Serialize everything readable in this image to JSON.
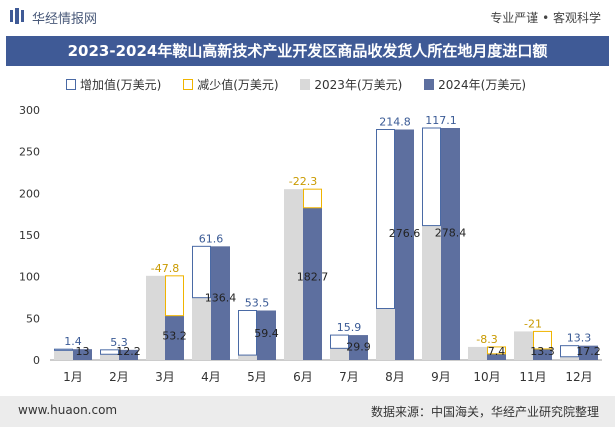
{
  "header": {
    "brand": "华经情报网",
    "slogan": "专业严谨 • 客观科学"
  },
  "footer": {
    "site": "www.huaon.com",
    "source": "数据来源：中国海关，华经产业研究院整理"
  },
  "colors": {
    "title_bg": "#3f5a96",
    "increase": "#4a6aa5",
    "decrease": "#f0b400",
    "y2023": "#d9d9d9",
    "y2024": "#5d6f9f"
  },
  "chart_data": {
    "type": "bar",
    "title": "2023-2024年鞍山高新技术产业开发区商品收发货人所在地月度进口额",
    "categories": [
      "1月",
      "2月",
      "3月",
      "4月",
      "5月",
      "6月",
      "7月",
      "8月",
      "9月",
      "10月",
      "11月",
      "12月"
    ],
    "series": [
      {
        "name": "2023年(万美元)",
        "values": [
          11.6,
          6.9,
          101.0,
          74.8,
          5.9,
          205.0,
          14.0,
          61.8,
          161.3,
          15.7,
          34.3,
          3.9
        ]
      },
      {
        "name": "2024年(万美元)",
        "values": [
          13,
          12.2,
          53.2,
          136.4,
          59.4,
          182.7,
          29.9,
          276.6,
          278.4,
          7.4,
          13.3,
          17.2
        ]
      }
    ],
    "change": {
      "increase_label": "增加值(万美元)",
      "decrease_label": "减少值(万美元)",
      "values": [
        1.4,
        5.3,
        -47.8,
        61.6,
        53.5,
        -22.3,
        15.9,
        214.8,
        117.1,
        -8.3,
        -21,
        13.3
      ],
      "labels": [
        "1.4",
        "5.3",
        "-47.8",
        "61.6",
        "53.5",
        "-22.3",
        "15.9",
        "214.8",
        "117.1",
        "-8.3",
        "-21",
        "13.3"
      ]
    },
    "value_labels_2024": [
      "13",
      "12.2",
      "53.2",
      "136.4",
      "59.4",
      "182.7",
      "29.9",
      "276.6",
      "278.4",
      "7.4",
      "13.3",
      "17.2"
    ],
    "y_ticks": [
      "0",
      "50",
      "100",
      "150",
      "200",
      "250",
      "300"
    ],
    "ylim": [
      0,
      300
    ],
    "grid": false
  }
}
